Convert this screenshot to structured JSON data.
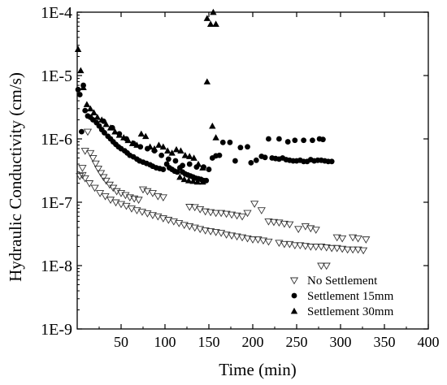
{
  "chart_data": {
    "type": "scatter",
    "xlabel": "Time (min)",
    "ylabel": "Hydraulic Conductivity (cm/s)",
    "xlim": [
      0,
      400
    ],
    "ylim": [
      1e-09,
      0.0001
    ],
    "y_scale": "log",
    "x_ticks": [
      50,
      100,
      150,
      200,
      250,
      300,
      350,
      400
    ],
    "y_ticks": [
      {
        "value": 1e-09,
        "label": "1E-9"
      },
      {
        "value": 1e-08,
        "label": "1E-8"
      },
      {
        "value": 1e-07,
        "label": "1E-7"
      },
      {
        "value": 1e-06,
        "label": "1E-6"
      },
      {
        "value": 1e-05,
        "label": "1E-5"
      },
      {
        "value": 0.0001,
        "label": "1E-4"
      }
    ],
    "grid": false,
    "legend_position": "bottom-right",
    "series": [
      {
        "name": "No Settlement",
        "marker": "triangle-down-open",
        "points": [
          [
            3,
            2.6e-07
          ],
          [
            6,
            3.5e-07
          ],
          [
            9,
            6.5e-07
          ],
          [
            12,
            1.3e-06
          ],
          [
            15,
            6e-07
          ],
          [
            18,
            5e-07
          ],
          [
            21,
            4.1e-07
          ],
          [
            24,
            3.4e-07
          ],
          [
            27,
            2.9e-07
          ],
          [
            30,
            2.5e-07
          ],
          [
            33,
            2.2e-07
          ],
          [
            37,
            1.9e-07
          ],
          [
            41,
            1.7e-07
          ],
          [
            45,
            1.5e-07
          ],
          [
            50,
            1.4e-07
          ],
          [
            55,
            1.3e-07
          ],
          [
            60,
            1.2e-07
          ],
          [
            65,
            1.15e-07
          ],
          [
            70,
            1.1e-07
          ],
          [
            75,
            1.6e-07
          ],
          [
            80,
            1.5e-07
          ],
          [
            86,
            1.4e-07
          ],
          [
            92,
            1.25e-07
          ],
          [
            98,
            1.2e-07
          ],
          [
            6,
            2.7e-07
          ],
          [
            9,
            2.4e-07
          ],
          [
            14,
            2e-07
          ],
          [
            20,
            1.7e-07
          ],
          [
            26,
            1.4e-07
          ],
          [
            32,
            1.25e-07
          ],
          [
            38,
            1.1e-07
          ],
          [
            44,
            1e-07
          ],
          [
            50,
            9.4e-08
          ],
          [
            56,
            8.8e-08
          ],
          [
            62,
            8e-08
          ],
          [
            68,
            7.5e-08
          ],
          [
            74,
            7.1e-08
          ],
          [
            80,
            6.7e-08
          ],
          [
            86,
            6.3e-08
          ],
          [
            92,
            6e-08
          ],
          [
            98,
            5.6e-08
          ],
          [
            104,
            5.3e-08
          ],
          [
            110,
            5e-08
          ],
          [
            116,
            4.7e-08
          ],
          [
            122,
            4.4e-08
          ],
          [
            128,
            4.2e-08
          ],
          [
            134,
            4e-08
          ],
          [
            140,
            3.8e-08
          ],
          [
            146,
            3.6e-08
          ],
          [
            152,
            3.5e-08
          ],
          [
            158,
            3.4e-08
          ],
          [
            164,
            3.3e-08
          ],
          [
            170,
            3.1e-08
          ],
          [
            176,
            3e-08
          ],
          [
            182,
            2.9e-08
          ],
          [
            188,
            2.8e-08
          ],
          [
            194,
            2.7e-08
          ],
          [
            200,
            2.6e-08
          ],
          [
            206,
            2.6e-08
          ],
          [
            212,
            2.5e-08
          ],
          [
            218,
            2.4e-08
          ],
          [
            230,
            2.3e-08
          ],
          [
            236,
            2.2e-08
          ],
          [
            242,
            2.2e-08
          ],
          [
            248,
            2.1e-08
          ],
          [
            254,
            2.1e-08
          ],
          [
            260,
            2.05e-08
          ],
          [
            266,
            2e-08
          ],
          [
            272,
            2e-08
          ],
          [
            278,
            2e-08
          ],
          [
            284,
            1.95e-08
          ],
          [
            290,
            1.9e-08
          ],
          [
            296,
            1.9e-08
          ],
          [
            302,
            1.85e-08
          ],
          [
            308,
            1.8e-08
          ],
          [
            314,
            1.8e-08
          ],
          [
            320,
            1.8e-08
          ],
          [
            326,
            1.75e-08
          ],
          [
            128,
            8.5e-08
          ],
          [
            134,
            8.4e-08
          ],
          [
            140,
            7.8e-08
          ],
          [
            146,
            7.2e-08
          ],
          [
            152,
            7e-08
          ],
          [
            158,
            6.8e-08
          ],
          [
            164,
            6.8e-08
          ],
          [
            170,
            6.6e-08
          ],
          [
            176,
            6.4e-08
          ],
          [
            182,
            6.2e-08
          ],
          [
            188,
            6e-08
          ],
          [
            194,
            6.8e-08
          ],
          [
            202,
            9.5e-08
          ],
          [
            210,
            7.5e-08
          ],
          [
            218,
            5e-08
          ],
          [
            224,
            4.9e-08
          ],
          [
            230,
            4.8e-08
          ],
          [
            236,
            4.6e-08
          ],
          [
            242,
            4.5e-08
          ],
          [
            252,
            3.8e-08
          ],
          [
            260,
            4.2e-08
          ],
          [
            266,
            3.9e-08
          ],
          [
            272,
            3.7e-08
          ],
          [
            278,
            1e-08
          ],
          [
            284,
            1e-08
          ],
          [
            296,
            2.8e-08
          ],
          [
            302,
            2.7e-08
          ],
          [
            314,
            2.8e-08
          ],
          [
            320,
            2.7e-08
          ],
          [
            329,
            2.6e-08
          ]
        ]
      },
      {
        "name": "Settlement 15mm",
        "marker": "circle-filled",
        "points": [
          [
            1,
            6e-06
          ],
          [
            3,
            5e-06
          ],
          [
            5,
            1.3e-06
          ],
          [
            7,
            7e-06
          ],
          [
            9,
            2.8e-06
          ],
          [
            12,
            2.3e-06
          ],
          [
            15,
            2.2e-06
          ],
          [
            18,
            2e-06
          ],
          [
            22,
            1.8e-06
          ],
          [
            25,
            1.6e-06
          ],
          [
            28,
            1.4e-06
          ],
          [
            31,
            1.25e-06
          ],
          [
            35,
            1.1e-06
          ],
          [
            38,
            1e-06
          ],
          [
            41,
            9e-07
          ],
          [
            44,
            8.2e-07
          ],
          [
            47,
            7.5e-07
          ],
          [
            50,
            7e-07
          ],
          [
            54,
            6.5e-07
          ],
          [
            57,
            6e-07
          ],
          [
            60,
            5.5e-07
          ],
          [
            64,
            5.2e-07
          ],
          [
            68,
            4.8e-07
          ],
          [
            71,
            4.5e-07
          ],
          [
            75,
            4.3e-07
          ],
          [
            79,
            4.1e-07
          ],
          [
            83,
            3.9e-07
          ],
          [
            86,
            3.7e-07
          ],
          [
            90,
            3.5e-07
          ],
          [
            94,
            3.4e-07
          ],
          [
            98,
            3.3e-07
          ],
          [
            102,
            4e-07
          ],
          [
            105,
            3.5e-07
          ],
          [
            108,
            3.3e-07
          ],
          [
            111,
            3.1e-07
          ],
          [
            114,
            3e-07
          ],
          [
            117,
            3.5e-07
          ],
          [
            120,
            3e-07
          ],
          [
            123,
            2.8e-07
          ],
          [
            126,
            2.7e-07
          ],
          [
            129,
            2.6e-07
          ],
          [
            132,
            2.5e-07
          ],
          [
            135,
            2.4e-07
          ],
          [
            138,
            2.35e-07
          ],
          [
            141,
            2.3e-07
          ],
          [
            144,
            2.2e-07
          ],
          [
            147,
            2.2e-07
          ],
          [
            30,
            1.9e-06
          ],
          [
            40,
            1.5e-06
          ],
          [
            48,
            1.2e-06
          ],
          [
            56,
            1e-06
          ],
          [
            64,
            8.5e-07
          ],
          [
            72,
            7.5e-07
          ],
          [
            80,
            7e-07
          ],
          [
            88,
            6.5e-07
          ],
          [
            96,
            5.5e-07
          ],
          [
            104,
            4.8e-07
          ],
          [
            112,
            4.5e-07
          ],
          [
            120,
            3.8e-07
          ],
          [
            128,
            4e-07
          ],
          [
            136,
            3.6e-07
          ],
          [
            144,
            3.6e-07
          ],
          [
            150,
            3.3e-07
          ],
          [
            154,
            5e-07
          ],
          [
            158,
            5.4e-07
          ],
          [
            162,
            5.5e-07
          ],
          [
            166,
            8.8e-07
          ],
          [
            174,
            8.8e-07
          ],
          [
            180,
            4.5e-07
          ],
          [
            186,
            7.3e-07
          ],
          [
            194,
            7.5e-07
          ],
          [
            198,
            4.2e-07
          ],
          [
            204,
            4.6e-07
          ],
          [
            210,
            5.3e-07
          ],
          [
            214,
            5.1e-07
          ],
          [
            218,
            1e-06
          ],
          [
            222,
            5e-07
          ],
          [
            226,
            4.9e-07
          ],
          [
            230,
            4.8e-07
          ],
          [
            234,
            5e-07
          ],
          [
            238,
            4.7e-07
          ],
          [
            242,
            4.6e-07
          ],
          [
            246,
            4.5e-07
          ],
          [
            250,
            4.5e-07
          ],
          [
            254,
            4.6e-07
          ],
          [
            258,
            4.4e-07
          ],
          [
            262,
            4.4e-07
          ],
          [
            266,
            4.7e-07
          ],
          [
            270,
            4.5e-07
          ],
          [
            274,
            4.6e-07
          ],
          [
            278,
            4.6e-07
          ],
          [
            282,
            4.5e-07
          ],
          [
            286,
            4.4e-07
          ],
          [
            290,
            4.4e-07
          ],
          [
            230,
            1e-06
          ],
          [
            240,
            9e-07
          ],
          [
            248,
            9.5e-07
          ],
          [
            258,
            9.5e-07
          ],
          [
            268,
            9.5e-07
          ],
          [
            276,
            1e-06
          ],
          [
            280,
            9.8e-07
          ]
        ]
      },
      {
        "name": "Settlement 30mm",
        "marker": "triangle-up-filled",
        "points": [
          [
            1,
            2.6e-05
          ],
          [
            4,
            1.2e-05
          ],
          [
            7,
            6.5e-06
          ],
          [
            11,
            3.5e-06
          ],
          [
            15,
            3e-06
          ],
          [
            19,
            2.6e-06
          ],
          [
            23,
            2.2e-06
          ],
          [
            28,
            2e-06
          ],
          [
            33,
            1.7e-06
          ],
          [
            38,
            1.5e-06
          ],
          [
            43,
            1.3e-06
          ],
          [
            48,
            1.15e-06
          ],
          [
            53,
            1.05e-06
          ],
          [
            58,
            9.5e-07
          ],
          [
            63,
            8.5e-07
          ],
          [
            68,
            8e-07
          ],
          [
            73,
            1.2e-06
          ],
          [
            78,
            1.1e-06
          ],
          [
            83,
            7.5e-07
          ],
          [
            88,
            7e-07
          ],
          [
            93,
            8e-07
          ],
          [
            98,
            7.5e-07
          ],
          [
            103,
            6.5e-07
          ],
          [
            108,
            6e-07
          ],
          [
            113,
            6.8e-07
          ],
          [
            118,
            6.5e-07
          ],
          [
            123,
            5.5e-07
          ],
          [
            128,
            5.3e-07
          ],
          [
            133,
            5e-07
          ],
          [
            138,
            4e-07
          ],
          [
            143,
            3.5e-07
          ],
          [
            117,
            2.5e-07
          ],
          [
            122,
            2.3e-07
          ],
          [
            127,
            2.2e-07
          ],
          [
            132,
            2.15e-07
          ],
          [
            137,
            2.1e-07
          ],
          [
            143,
            2.1e-07
          ],
          [
            148,
            8e-05
          ],
          [
            152,
            6.5e-05
          ],
          [
            155,
            0.0001
          ],
          [
            158,
            6.5e-05
          ],
          [
            148,
            8e-06
          ],
          [
            154,
            1.6e-06
          ],
          [
            158,
            1.05e-06
          ]
        ]
      }
    ]
  }
}
